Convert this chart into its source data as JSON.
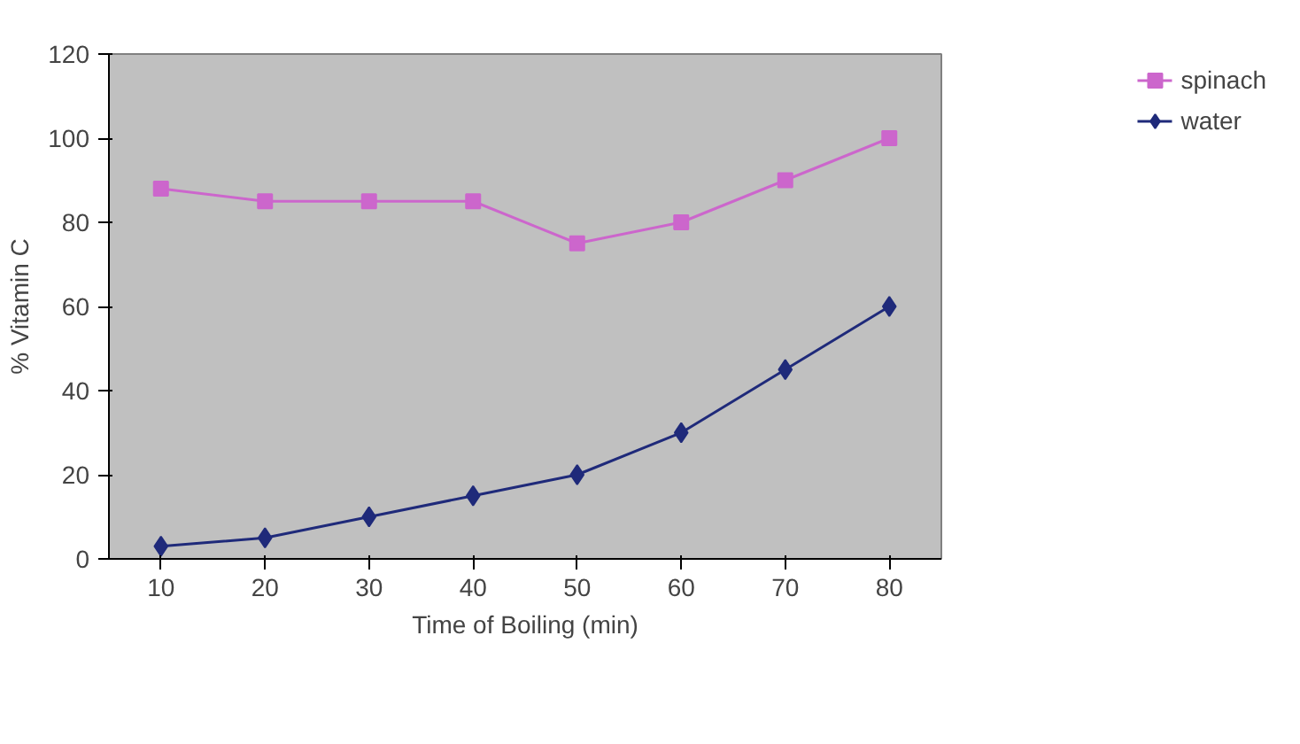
{
  "chart_data": {
    "type": "line",
    "xlabel": "Time of Boiling (min)",
    "ylabel": "% Vitamin C",
    "categories": [
      "10",
      "20",
      "30",
      "40",
      "50",
      "60",
      "70",
      "80"
    ],
    "series": [
      {
        "name": "spinach",
        "color": "#cc66cc",
        "marker": "square",
        "values": [
          88,
          85,
          85,
          85,
          75,
          80,
          90,
          100
        ]
      },
      {
        "name": "water",
        "color": "#1f2a7a",
        "marker": "diamond",
        "values": [
          3,
          5,
          10,
          15,
          20,
          30,
          45,
          60
        ]
      }
    ],
    "ylim": [
      0,
      120
    ],
    "yticks": [
      0,
      20,
      40,
      60,
      80,
      100,
      120
    ],
    "grid": false,
    "legend": "right",
    "line_style": "solid"
  }
}
